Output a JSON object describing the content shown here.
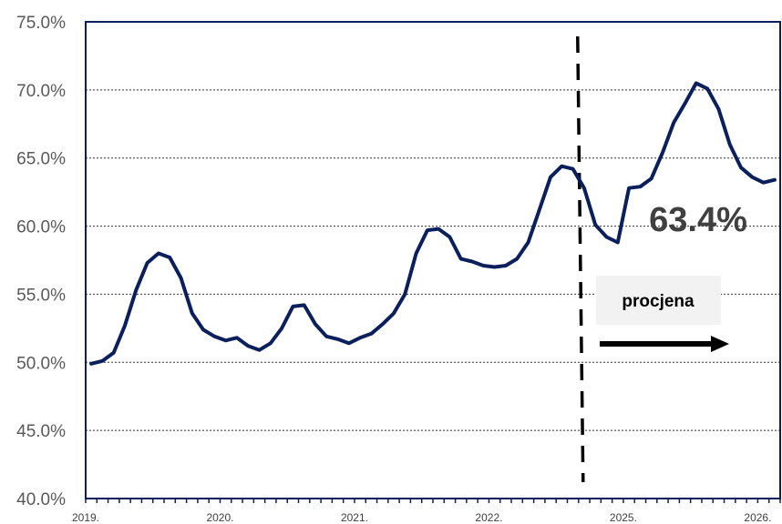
{
  "chart_data": {
    "type": "line",
    "title": "",
    "xlabel": "",
    "ylabel": "",
    "ylim": [
      40,
      75
    ],
    "y_ticks": [
      "40.0%",
      "45.0%",
      "50.0%",
      "55.0%",
      "60.0%",
      "65.0%",
      "70.0%",
      "75.0%"
    ],
    "y_tick_values": [
      40,
      45,
      50,
      55,
      60,
      65,
      70,
      75
    ],
    "x_tick_labels": [
      "2019.",
      "2020.",
      "2021.",
      "2022.",
      "2025.",
      "2026."
    ],
    "grid": "horizontal dotted",
    "series": [
      {
        "color": "#0a1f5c",
        "values": [
          49.9,
          50.1,
          50.7,
          52.7,
          55.3,
          57.3,
          58.0,
          57.7,
          56.2,
          53.6,
          52.4,
          51.9,
          51.6,
          51.8,
          51.2,
          50.9,
          51.4,
          52.5,
          54.1,
          54.2,
          52.8,
          51.9,
          51.7,
          51.4,
          51.8,
          52.1,
          52.8,
          53.6,
          55.0,
          58.0,
          59.7,
          59.8,
          59.2,
          57.6,
          57.4,
          57.1,
          57.0,
          57.1,
          57.6,
          58.8,
          61.2,
          63.6,
          64.4,
          64.2,
          62.8,
          60.1,
          59.2,
          58.8,
          62.8,
          62.9,
          63.5,
          65.4,
          67.6,
          69.0,
          70.5,
          70.1,
          68.6,
          66.0,
          64.3,
          63.6,
          63.2,
          63.4
        ]
      }
    ],
    "forecast_start_index": 44,
    "annotations": {
      "last_value_label": "63.4%",
      "forecast_label": "procjena"
    }
  }
}
